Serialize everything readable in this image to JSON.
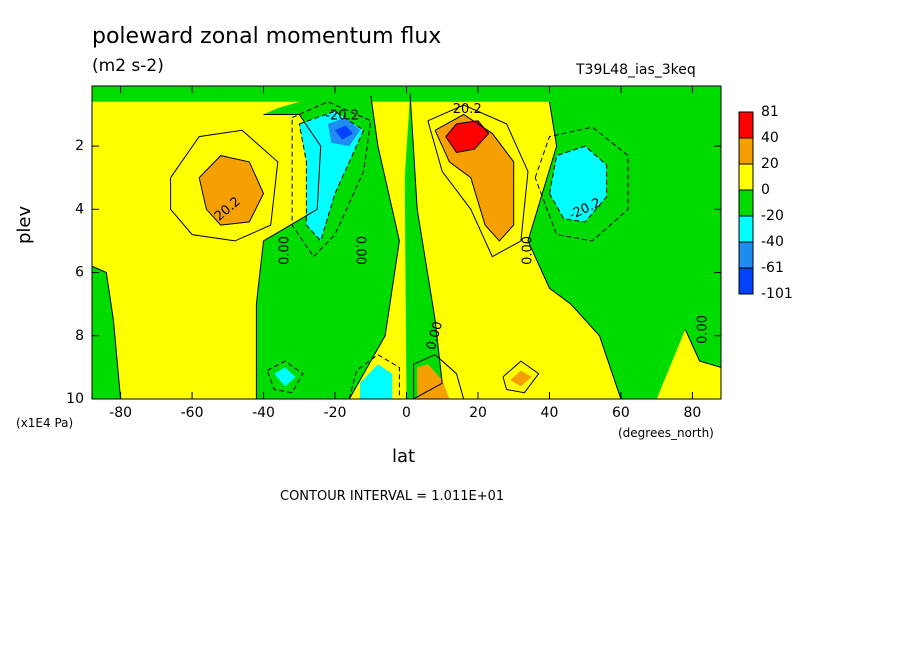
{
  "chart_data": {
    "type": "heatmap",
    "title": "poleward zonal momentum flux",
    "units": "(m2 s-2)",
    "run_name": "T39L48_ias_3keq",
    "xlabel": "lat",
    "x_units": "(degrees_north)",
    "ylabel": "plev",
    "y_units": "(x1E4 Pa)",
    "contour_interval": "CONTOUR INTERVAL = 1.011E+01",
    "xlim": [
      -88,
      88
    ],
    "ylim": [
      10,
      0.1
    ],
    "x_ticks": [
      -80,
      -60,
      -40,
      -20,
      0,
      20,
      40,
      60,
      80
    ],
    "x_tick_labels": [
      "-80",
      "-60",
      "-40",
      "-20",
      "0",
      "20",
      "40",
      "60",
      "80"
    ],
    "y_ticks": [
      2,
      4,
      6,
      8,
      10
    ],
    "y_tick_labels": [
      "2",
      "4",
      "6",
      "8",
      "10"
    ],
    "colorbar": {
      "labels": [
        "81",
        "40",
        "20",
        "0",
        "-20",
        "-40",
        "-61",
        "-101"
      ],
      "colors": [
        "#ff0000",
        "#f5a000",
        "#ffff00",
        "#00dc00",
        "#00ffff",
        "#1e8cf0",
        "#0040ff"
      ]
    },
    "contour_labels": [
      {
        "text": "20.2",
        "x": -50,
        "y": 4.0,
        "rot": -40
      },
      {
        "text": "-20.2",
        "x": -18,
        "y": 1.05,
        "rot": 0
      },
      {
        "text": "20.2",
        "x": 17,
        "y": 0.85,
        "rot": 0
      },
      {
        "text": "-20.2",
        "x": 50,
        "y": 4.0,
        "rot": -25
      },
      {
        "text": "0.00",
        "x": -34,
        "y": 5.3,
        "rot": -90
      },
      {
        "text": "0.00",
        "x": -13,
        "y": 5.3,
        "rot": 90
      },
      {
        "text": "0.00",
        "x": 34,
        "y": 5.3,
        "rot": -90
      },
      {
        "text": "0.00",
        "x": 8,
        "y": 8.0,
        "rot": -75
      },
      {
        "text": "0.00",
        "x": 83,
        "y": 7.8,
        "rot": -90
      }
    ],
    "regions": [
      {
        "name": "green-top-band",
        "color": "#00dc00",
        "pts": [
          [
            -88,
            0.1
          ],
          [
            88,
            0.1
          ],
          [
            88,
            0.6
          ],
          [
            -88,
            0.6
          ]
        ]
      },
      {
        "name": "green-left-column",
        "color": "#00dc00",
        "pts": [
          [
            -40,
            1.0
          ],
          [
            -30,
            1.0
          ],
          [
            -24,
            2.0
          ],
          [
            -25,
            4.0
          ],
          [
            -40,
            5.0
          ],
          [
            -42,
            7.0
          ],
          [
            -42,
            10.0
          ],
          [
            -16,
            10.0
          ],
          [
            -6,
            8.0
          ],
          [
            -2,
            5.0
          ],
          [
            -8,
            2.0
          ],
          [
            -10,
            0.4
          ],
          [
            -22,
            0.4
          ],
          [
            -30,
            0.6
          ],
          [
            -36,
            0.8
          ]
        ]
      },
      {
        "name": "green-center-spike",
        "color": "#00dc00",
        "pts": [
          [
            1,
            0.35
          ],
          [
            3,
            4.0
          ],
          [
            8,
            7.5
          ],
          [
            10,
            9.5
          ],
          [
            2,
            10.0
          ],
          [
            0,
            10.0
          ],
          [
            -0.5,
            3.0
          ]
        ]
      },
      {
        "name": "green-right-column",
        "color": "#00dc00",
        "pts": [
          [
            30,
            0.4
          ],
          [
            40,
            0.6
          ],
          [
            42,
            2.0
          ],
          [
            34,
            5.0
          ],
          [
            40,
            6.5
          ],
          [
            46,
            7.0
          ],
          [
            54,
            8.0
          ],
          [
            60,
            10.0
          ],
          [
            88,
            10.0
          ],
          [
            88,
            0.4
          ],
          [
            70,
            0.4
          ],
          [
            58,
            0.5
          ]
        ]
      },
      {
        "name": "green-left-edge",
        "color": "#00dc00",
        "pts": [
          [
            -88,
            5.8
          ],
          [
            -84,
            6.0
          ],
          [
            -82,
            7.5
          ],
          [
            -80,
            10.0
          ],
          [
            -88,
            10.0
          ]
        ]
      },
      {
        "name": "yellow-right-bottom",
        "color": "#ffff00",
        "pts": [
          [
            78,
            7.8
          ],
          [
            82,
            8.8
          ],
          [
            88,
            9.0
          ],
          [
            88,
            10.0
          ],
          [
            70,
            10.0
          ]
        ]
      },
      {
        "name": "orange-left-blob",
        "color": "#f5a000",
        "pts": [
          [
            -58,
            3.0
          ],
          [
            -52,
            2.3
          ],
          [
            -44,
            2.5
          ],
          [
            -40,
            3.5
          ],
          [
            -44,
            4.4
          ],
          [
            -52,
            4.5
          ],
          [
            -56,
            4.0
          ]
        ]
      },
      {
        "name": "cyan-left-column",
        "color": "#00ffff",
        "pts": [
          [
            -30,
            1.3
          ],
          [
            -20,
            0.9
          ],
          [
            -12,
            1.5
          ],
          [
            -16,
            2.5
          ],
          [
            -20,
            3.5
          ],
          [
            -24,
            5.0
          ],
          [
            -28,
            4.5
          ],
          [
            -28,
            2.5
          ]
        ]
      },
      {
        "name": "blue-left-core",
        "color": "#1e8cf0",
        "pts": [
          [
            -22,
            1.3
          ],
          [
            -17,
            1.1
          ],
          [
            -13,
            1.5
          ],
          [
            -16,
            2.0
          ],
          [
            -21,
            1.9
          ]
        ]
      },
      {
        "name": "deepblue-left-core",
        "color": "#0040ff",
        "pts": [
          [
            -20,
            1.5
          ],
          [
            -17,
            1.35
          ],
          [
            -15,
            1.6
          ],
          [
            -18,
            1.8
          ]
        ]
      },
      {
        "name": "orange-right-column",
        "color": "#f5a000",
        "pts": [
          [
            8,
            1.5
          ],
          [
            16,
            1.0
          ],
          [
            24,
            1.6
          ],
          [
            30,
            2.5
          ],
          [
            30,
            4.5
          ],
          [
            26,
            5.0
          ],
          [
            22,
            4.5
          ],
          [
            18,
            3.0
          ],
          [
            12,
            2.5
          ]
        ]
      },
      {
        "name": "red-right-core",
        "color": "#ff0000",
        "pts": [
          [
            11,
            1.7
          ],
          [
            14,
            1.3
          ],
          [
            20,
            1.2
          ],
          [
            23,
            1.6
          ],
          [
            19,
            2.1
          ],
          [
            14,
            2.2
          ]
        ]
      },
      {
        "name": "cyan-right-blob",
        "color": "#00ffff",
        "pts": [
          [
            40,
            3.5
          ],
          [
            42,
            2.3
          ],
          [
            50,
            2.0
          ],
          [
            56,
            2.6
          ],
          [
            56,
            3.6
          ],
          [
            50,
            4.4
          ],
          [
            44,
            4.3
          ]
        ]
      },
      {
        "name": "cyan-left-bottom-small",
        "color": "#00ffff",
        "pts": [
          [
            -37,
            9.2
          ],
          [
            -34,
            9.0
          ],
          [
            -31,
            9.3
          ],
          [
            -34,
            9.6
          ]
        ]
      },
      {
        "name": "cyan-center-bottom",
        "color": "#00ffff",
        "pts": [
          [
            -13,
            9.5
          ],
          [
            -8,
            8.9
          ],
          [
            -4,
            9.2
          ],
          [
            -4,
            10.0
          ],
          [
            -13,
            10.0
          ]
        ]
      },
      {
        "name": "orange-center-bottom",
        "color": "#f5a000",
        "pts": [
          [
            3,
            9.0
          ],
          [
            6,
            8.9
          ],
          [
            10,
            9.4
          ],
          [
            12,
            10.0
          ],
          [
            3,
            10.0
          ]
        ]
      },
      {
        "name": "orange-right-bottom-small",
        "color": "#f5a000",
        "pts": [
          [
            29,
            9.4
          ],
          [
            32,
            9.1
          ],
          [
            35,
            9.3
          ],
          [
            32,
            9.6
          ]
        ]
      }
    ],
    "contours": [
      {
        "name": "zero-contour-left",
        "style": "solid",
        "pts": [
          [
            -40,
            1.0
          ],
          [
            -30,
            1.0
          ],
          [
            -24,
            2.0
          ],
          [
            -25,
            4.0
          ],
          [
            -40,
            5.0
          ],
          [
            -42,
            7.0
          ],
          [
            -42,
            10.0
          ]
        ]
      },
      {
        "name": "zero-contour-center-left",
        "style": "solid",
        "pts": [
          [
            -10,
            0.4
          ],
          [
            -8,
            2.0
          ],
          [
            -2,
            5.0
          ],
          [
            -6,
            8.0
          ],
          [
            -16,
            10.0
          ]
        ]
      },
      {
        "name": "zero-contour-spike",
        "style": "solid",
        "pts": [
          [
            1,
            0.35
          ],
          [
            3,
            4.0
          ],
          [
            8,
            7.5
          ],
          [
            10,
            9.5
          ],
          [
            2,
            10.0
          ]
        ]
      },
      {
        "name": "zero-contour-right",
        "style": "solid",
        "pts": [
          [
            40,
            0.6
          ],
          [
            42,
            2.0
          ],
          [
            34,
            5.0
          ],
          [
            40,
            6.5
          ],
          [
            46,
            7.0
          ],
          [
            54,
            8.0
          ],
          [
            60,
            10.0
          ]
        ]
      },
      {
        "name": "pos10-left-outer",
        "style": "solid",
        "pts": [
          [
            -66,
            3.0
          ],
          [
            -58,
            1.7
          ],
          [
            -46,
            1.5
          ],
          [
            -36,
            2.5
          ],
          [
            -38,
            4.5
          ],
          [
            -48,
            5.0
          ],
          [
            -60,
            4.8
          ],
          [
            -66,
            4.0
          ],
          [
            -66,
            3.0
          ]
        ]
      },
      {
        "name": "pos20-left",
        "style": "solid",
        "pts": [
          [
            -58,
            3.0
          ],
          [
            -52,
            2.3
          ],
          [
            -44,
            2.5
          ],
          [
            -40,
            3.5
          ],
          [
            -44,
            4.4
          ],
          [
            -52,
            4.5
          ],
          [
            -56,
            4.0
          ],
          [
            -58,
            3.0
          ]
        ]
      },
      {
        "name": "neg10-left",
        "style": "dashed",
        "pts": [
          [
            -32,
            1.1
          ],
          [
            -22,
            0.6
          ],
          [
            -10,
            1.2
          ],
          [
            -12,
            2.8
          ],
          [
            -20,
            4.8
          ],
          [
            -26,
            5.5
          ],
          [
            -32,
            4.5
          ],
          [
            -32,
            2.0
          ],
          [
            -32,
            1.1
          ]
        ]
      },
      {
        "name": "neg20-left",
        "style": "dashed",
        "pts": [
          [
            -30,
            1.3
          ],
          [
            -20,
            0.9
          ],
          [
            -12,
            1.5
          ],
          [
            -16,
            2.5
          ],
          [
            -20,
            3.5
          ],
          [
            -24,
            5.0
          ],
          [
            -28,
            4.5
          ],
          [
            -28,
            2.5
          ],
          [
            -30,
            1.3
          ]
        ]
      },
      {
        "name": "pos10-right-outer",
        "style": "solid",
        "pts": [
          [
            6,
            1.2
          ],
          [
            16,
            0.7
          ],
          [
            28,
            1.3
          ],
          [
            34,
            2.8
          ],
          [
            32,
            5.0
          ],
          [
            24,
            5.5
          ],
          [
            18,
            4.0
          ],
          [
            10,
            2.8
          ],
          [
            6,
            1.2
          ]
        ]
      },
      {
        "name": "pos20-right",
        "style": "solid",
        "pts": [
          [
            8,
            1.5
          ],
          [
            16,
            1.0
          ],
          [
            24,
            1.6
          ],
          [
            30,
            2.5
          ],
          [
            30,
            4.5
          ],
          [
            26,
            5.0
          ],
          [
            22,
            4.5
          ],
          [
            18,
            3.0
          ],
          [
            12,
            2.5
          ],
          [
            8,
            1.5
          ]
        ]
      },
      {
        "name": "pos40-right",
        "style": "solid",
        "pts": [
          [
            11,
            1.7
          ],
          [
            14,
            1.3
          ],
          [
            20,
            1.2
          ],
          [
            23,
            1.6
          ],
          [
            19,
            2.1
          ],
          [
            14,
            2.2
          ],
          [
            11,
            1.7
          ]
        ]
      },
      {
        "name": "neg10-right-outer",
        "style": "dashed",
        "pts": [
          [
            36,
            3.0
          ],
          [
            40,
            1.7
          ],
          [
            52,
            1.4
          ],
          [
            62,
            2.3
          ],
          [
            62,
            4.0
          ],
          [
            52,
            5.0
          ],
          [
            42,
            4.8
          ],
          [
            36,
            3.0
          ]
        ]
      },
      {
        "name": "neg20-right",
        "style": "dashed",
        "pts": [
          [
            40,
            3.5
          ],
          [
            42,
            2.3
          ],
          [
            50,
            2.0
          ],
          [
            56,
            2.6
          ],
          [
            56,
            3.6
          ],
          [
            50,
            4.4
          ],
          [
            44,
            4.3
          ],
          [
            40,
            3.5
          ]
        ]
      },
      {
        "name": "zero-contour-right-bottom",
        "style": "solid",
        "pts": [
          [
            78,
            7.8
          ],
          [
            82,
            8.8
          ],
          [
            88,
            9.0
          ]
        ]
      },
      {
        "name": "zero-contour-left-edge",
        "style": "solid",
        "pts": [
          [
            -88,
            5.8
          ],
          [
            -84,
            6.0
          ],
          [
            -82,
            7.5
          ],
          [
            -80,
            10.0
          ]
        ]
      },
      {
        "name": "neg10-left-bottom",
        "style": "dashed",
        "pts": [
          [
            -39,
            9.1
          ],
          [
            -34,
            8.8
          ],
          [
            -29,
            9.2
          ],
          [
            -32,
            9.8
          ],
          [
            -37,
            9.7
          ],
          [
            -39,
            9.1
          ]
        ]
      },
      {
        "name": "neg10-center-bottom",
        "style": "dashed",
        "pts": [
          [
            -16,
            10.0
          ],
          [
            -14,
            9.1
          ],
          [
            -8,
            8.6
          ],
          [
            -2,
            9.0
          ],
          [
            -2,
            10.0
          ]
        ]
      },
      {
        "name": "pos10-center-bottom",
        "style": "solid",
        "pts": [
          [
            2,
            10.0
          ],
          [
            2,
            8.9
          ],
          [
            8,
            8.6
          ],
          [
            14,
            9.2
          ],
          [
            16,
            10.0
          ]
        ]
      },
      {
        "name": "pos10-right-bottom-small",
        "style": "solid",
        "pts": [
          [
            27,
            9.3
          ],
          [
            32,
            8.8
          ],
          [
            37,
            9.2
          ],
          [
            33,
            9.8
          ],
          [
            28,
            9.7
          ],
          [
            27,
            9.3
          ]
        ]
      }
    ]
  }
}
